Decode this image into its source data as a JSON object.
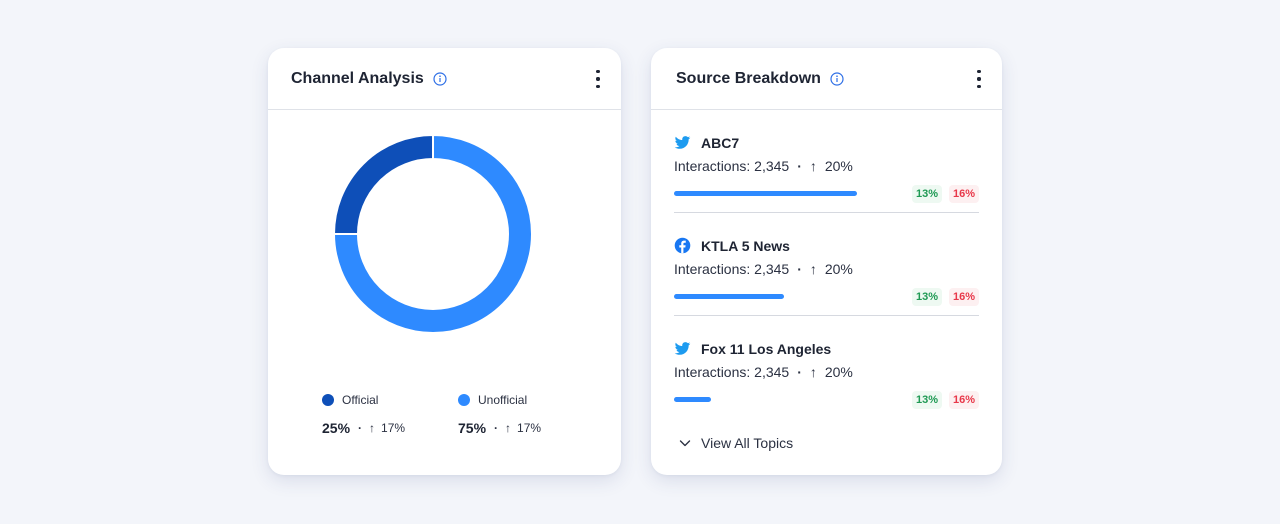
{
  "channel_card": {
    "title": "Channel Analysis",
    "info_icon": "info-icon",
    "menu_icon": "kebab-menu-icon",
    "legend": [
      {
        "label": "Official",
        "percent": "25%",
        "change": "17%",
        "color": "#0e4fb8"
      },
      {
        "label": "Unofficial",
        "percent": "75%",
        "change": "17%",
        "color": "#2e8aff"
      }
    ]
  },
  "chart_data": {
    "type": "pie",
    "categories": [
      "Official",
      "Unofficial"
    ],
    "values": [
      25,
      75
    ],
    "colors": [
      "#0e4fb8",
      "#2e8aff"
    ],
    "donut": true
  },
  "source_card": {
    "title": "Source Breakdown",
    "info_icon": "info-icon",
    "menu_icon": "kebab-menu-icon",
    "items": [
      {
        "icon": "twitter-icon",
        "name": "ABC7",
        "interactions_label": "Interactions: 2,345",
        "change": "20%",
        "progress": 0.6,
        "pos_badge": "13%",
        "neg_badge": "16%"
      },
      {
        "icon": "facebook-icon",
        "name": "KTLA 5 News",
        "interactions_label": "Interactions: 2,345",
        "change": "20%",
        "progress": 0.36,
        "pos_badge": "13%",
        "neg_badge": "16%"
      },
      {
        "icon": "twitter-icon",
        "name": "Fox 11 Los Angeles",
        "interactions_label": "Interactions: 2,345",
        "change": "20%",
        "progress": 0.12,
        "pos_badge": "13%",
        "neg_badge": "16%"
      }
    ],
    "view_all_label": "View All Topics",
    "view_all_icon": "chevron-down-icon"
  },
  "colors": {
    "accent_dark": "#0e4fb8",
    "accent": "#2e8aff",
    "positive": "#1f9a54",
    "negative": "#e8384a"
  }
}
